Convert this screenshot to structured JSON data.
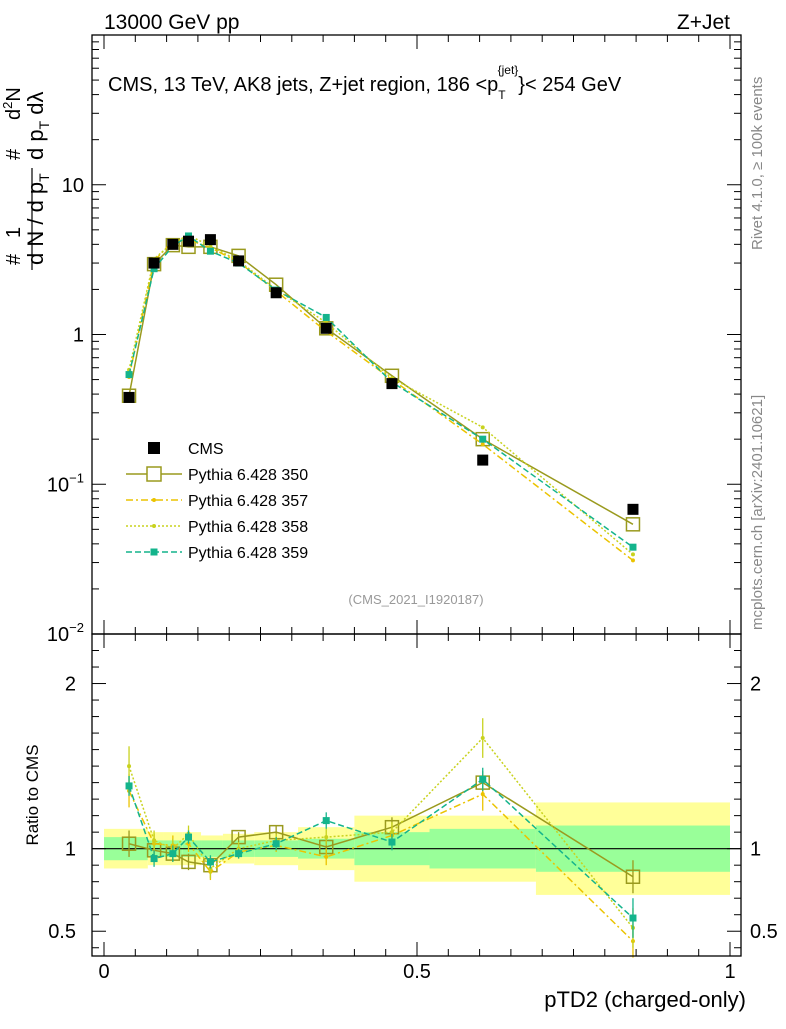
{
  "header": {
    "left": "13000 GeV pp",
    "right": "Z+Jet"
  },
  "side_labels": {
    "rivet": "Rivet 4.1.0, ≥ 100k events",
    "mcplots": "mcplots.cern.ch [arXiv:2401.10621]"
  },
  "chart_data": {
    "type": "line",
    "title": "CMS, 13 TeV, AK8 jets, Z+jet region, 186 <p_T^{jet}> < 254 GeV",
    "title_parts": {
      "pre": "CMS, 13 TeV, AK8 jets, Z+jet region, 186 <",
      "p": "p",
      "sub": "T",
      "sup": "{jet}",
      "post": "}< 254 GeV"
    },
    "ylabel_main": "1/N dN/dλ (differential in p_T)",
    "ylabel_ratio": "Ratio to CMS",
    "xlabel": "pTD2 (charged-only)",
    "watermark": "(CMS_2021_I1920187)",
    "xlim": [
      0,
      1
    ],
    "ylim_main": [
      0.01,
      100
    ],
    "ylim_ratio": [
      0.35,
      2.3
    ],
    "x_ticks": [
      "0",
      "0.5",
      "1"
    ],
    "y_ticks_main": [
      "10^-2",
      "10^-1",
      "1",
      "10"
    ],
    "y_ticks_ratio": [
      "0.5",
      "1",
      "2"
    ],
    "legend": {
      "entries": [
        "CMS",
        "Pythia 6.428 350",
        "Pythia 6.428 357",
        "Pythia 6.428 358",
        "Pythia 6.428 359"
      ]
    },
    "x": [
      0.04,
      0.08,
      0.11,
      0.135,
      0.17,
      0.215,
      0.275,
      0.355,
      0.46,
      0.605,
      0.845
    ],
    "bins": [
      [
        0.0,
        0.07
      ],
      [
        0.07,
        0.095
      ],
      [
        0.095,
        0.125
      ],
      [
        0.125,
        0.155
      ],
      [
        0.155,
        0.19
      ],
      [
        0.19,
        0.24
      ],
      [
        0.24,
        0.31
      ],
      [
        0.31,
        0.4
      ],
      [
        0.4,
        0.52
      ],
      [
        0.52,
        0.69
      ],
      [
        0.69,
        1.0
      ]
    ],
    "data": {
      "name": "CMS",
      "values": [
        0.38,
        3.0,
        4.0,
        4.2,
        4.3,
        3.1,
        1.9,
        1.1,
        0.47,
        0.145,
        0.068
      ],
      "stat_band": [
        0.07,
        0.05,
        0.05,
        0.05,
        0.05,
        0.05,
        0.05,
        0.06,
        0.1,
        0.12,
        0.14
      ],
      "total_band": [
        0.12,
        0.1,
        0.1,
        0.1,
        0.08,
        0.09,
        0.1,
        0.13,
        0.2,
        0.2,
        0.28
      ]
    },
    "series": [
      {
        "name": "Pythia 6.428 350",
        "color": "#9a9a1e",
        "style": "solid",
        "values": [
          0.39,
          2.95,
          3.95,
          3.85,
          3.85,
          3.35,
          2.15,
          1.1,
          0.53,
          0.2,
          0.054
        ],
        "ratio": [
          1.03,
          0.99,
          0.97,
          0.92,
          0.9,
          1.07,
          1.1,
          1.01,
          1.13,
          1.4,
          0.83
        ],
        "ratio_err": [
          0.08,
          0.05,
          0.05,
          0.05,
          0.05,
          0.03,
          0.04,
          0.05,
          0.06,
          0.07,
          0.1
        ]
      },
      {
        "name": "Pythia 6.428 357",
        "color": "#ebc300",
        "style": "dashdot",
        "values": [
          0.52,
          3.1,
          4.2,
          4.3,
          3.8,
          3.05,
          1.95,
          1.05,
          0.5,
          0.185,
          0.031
        ],
        "ratio": [
          1.35,
          1.03,
          1.02,
          1.03,
          0.86,
          0.98,
          1.02,
          0.95,
          1.08,
          1.33,
          0.44
        ],
        "ratio_err": [
          0.1,
          0.06,
          0.06,
          0.05,
          0.05,
          0.04,
          0.04,
          0.05,
          0.06,
          0.1,
          0.1
        ]
      },
      {
        "name": "Pythia 6.428 358",
        "color": "#c8d21e",
        "style": "dotted",
        "values": [
          0.58,
          3.2,
          4.1,
          4.6,
          3.9,
          3.1,
          2.0,
          1.2,
          0.51,
          0.24,
          0.034
        ],
        "ratio": [
          1.5,
          1.05,
          1.0,
          1.09,
          0.88,
          1.0,
          1.05,
          1.07,
          1.1,
          1.67,
          0.52
        ],
        "ratio_err": [
          0.12,
          0.06,
          0.06,
          0.05,
          0.06,
          0.04,
          0.04,
          0.05,
          0.06,
          0.12,
          0.12
        ]
      },
      {
        "name": "Pythia 6.428 359",
        "color": "#14b48c",
        "style": "dashed",
        "values": [
          0.54,
          2.75,
          3.9,
          4.55,
          3.6,
          3.0,
          1.98,
          1.3,
          0.48,
          0.2,
          0.038
        ],
        "ratio": [
          1.38,
          0.94,
          0.97,
          1.07,
          0.92,
          0.97,
          1.03,
          1.17,
          1.04,
          1.42,
          0.58
        ],
        "ratio_err": [
          0.06,
          0.05,
          0.05,
          0.04,
          0.04,
          0.03,
          0.04,
          0.05,
          0.05,
          0.07,
          0.12
        ]
      }
    ]
  }
}
